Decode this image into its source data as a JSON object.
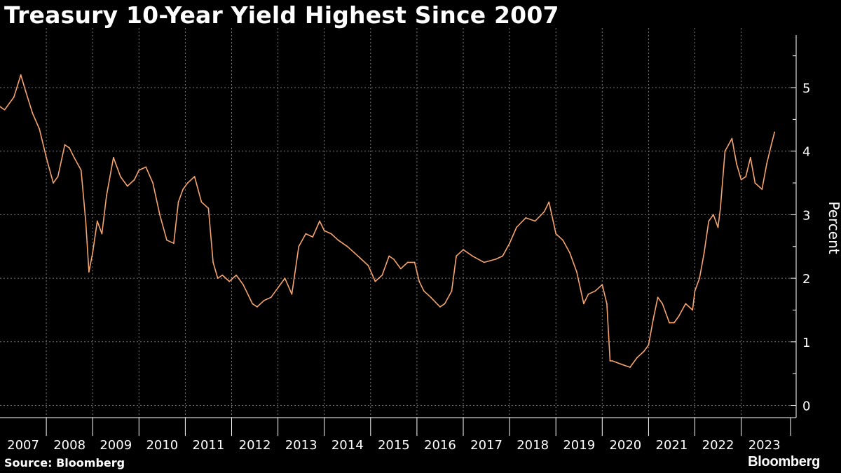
{
  "title": "Treasury 10-Year Yield Highest Since 2007",
  "source": "Source: Bloomberg",
  "brand": "Bloomberg",
  "colors": {
    "background": "#000000",
    "line": "#f5a46e",
    "grid": "#808080",
    "text": "#ffffff"
  },
  "chart_data": {
    "type": "line",
    "title": "Treasury 10-Year Yield Highest Since 2007",
    "ylabel": "Percent",
    "xlabel": "",
    "ylim": [
      0,
      5.8
    ],
    "y_ticks": [
      0,
      1,
      2,
      3,
      4,
      5
    ],
    "x_tick_labels": [
      "2007",
      "2008",
      "2009",
      "2010",
      "2011",
      "2012",
      "2013",
      "2014",
      "2015",
      "2016",
      "2017",
      "2018",
      "2019",
      "2020",
      "2021",
      "2022",
      "2023"
    ],
    "y_axis_position": "right",
    "grid": true,
    "legend": "none",
    "series": [
      {
        "x": [
          2007.0,
          2007.1,
          2007.3,
          2007.45,
          2007.55,
          2007.7,
          2007.85,
          2008.0,
          2008.15,
          2008.25,
          2008.4,
          2008.5,
          2008.6,
          2008.75,
          2008.85,
          2008.92,
          2009.0,
          2009.1,
          2009.2,
          2009.3,
          2009.45,
          2009.6,
          2009.75,
          2009.9,
          2010.0,
          2010.15,
          2010.3,
          2010.45,
          2010.6,
          2010.75,
          2010.85,
          2010.95,
          2011.05,
          2011.2,
          2011.35,
          2011.5,
          2011.6,
          2011.7,
          2011.8,
          2011.95,
          2012.1,
          2012.25,
          2012.45,
          2012.55,
          2012.7,
          2012.85,
          2013.0,
          2013.15,
          2013.3,
          2013.45,
          2013.6,
          2013.75,
          2013.9,
          2014.0,
          2014.15,
          2014.3,
          2014.5,
          2014.65,
          2014.8,
          2014.95,
          2015.1,
          2015.25,
          2015.4,
          2015.5,
          2015.65,
          2015.8,
          2015.95,
          2016.05,
          2016.15,
          2016.3,
          2016.5,
          2016.6,
          2016.75,
          2016.85,
          2017.0,
          2017.2,
          2017.45,
          2017.7,
          2017.85,
          2018.0,
          2018.15,
          2018.35,
          2018.55,
          2018.75,
          2018.85,
          2019.0,
          2019.15,
          2019.3,
          2019.45,
          2019.6,
          2019.7,
          2019.85,
          2020.0,
          2020.1,
          2020.17,
          2020.22,
          2020.4,
          2020.6,
          2020.75,
          2020.9,
          2021.0,
          2021.1,
          2021.2,
          2021.3,
          2021.45,
          2021.55,
          2021.65,
          2021.8,
          2021.95,
          2022.0,
          2022.1,
          2022.2,
          2022.3,
          2022.4,
          2022.5,
          2022.55,
          2022.65,
          2022.8,
          2022.9,
          2023.0,
          2023.1,
          2023.2,
          2023.3,
          2023.45,
          2023.55,
          2023.65,
          2023.72
        ],
        "values": [
          4.7,
          4.65,
          4.85,
          5.2,
          4.95,
          4.6,
          4.35,
          3.9,
          3.5,
          3.6,
          4.1,
          4.05,
          3.9,
          3.7,
          2.9,
          2.1,
          2.4,
          2.9,
          2.7,
          3.3,
          3.9,
          3.6,
          3.45,
          3.55,
          3.7,
          3.75,
          3.5,
          3.0,
          2.6,
          2.55,
          3.2,
          3.4,
          3.5,
          3.6,
          3.2,
          3.1,
          2.25,
          2.0,
          2.05,
          1.95,
          2.05,
          1.9,
          1.6,
          1.55,
          1.65,
          1.7,
          1.85,
          2.0,
          1.75,
          2.5,
          2.7,
          2.65,
          2.9,
          2.75,
          2.7,
          2.6,
          2.5,
          2.4,
          2.3,
          2.2,
          1.95,
          2.05,
          2.35,
          2.3,
          2.15,
          2.25,
          2.25,
          1.95,
          1.8,
          1.7,
          1.55,
          1.6,
          1.8,
          2.35,
          2.45,
          2.35,
          2.25,
          2.3,
          2.35,
          2.55,
          2.8,
          2.95,
          2.9,
          3.05,
          3.2,
          2.7,
          2.6,
          2.4,
          2.1,
          1.6,
          1.75,
          1.8,
          1.9,
          1.6,
          0.7,
          0.7,
          0.65,
          0.6,
          0.75,
          0.85,
          0.95,
          1.35,
          1.7,
          1.6,
          1.3,
          1.3,
          1.4,
          1.6,
          1.5,
          1.8,
          2.0,
          2.4,
          2.9,
          3.0,
          2.8,
          3.1,
          4.0,
          4.2,
          3.8,
          3.55,
          3.6,
          3.9,
          3.5,
          3.4,
          3.8,
          4.1,
          4.3
        ]
      }
    ]
  }
}
